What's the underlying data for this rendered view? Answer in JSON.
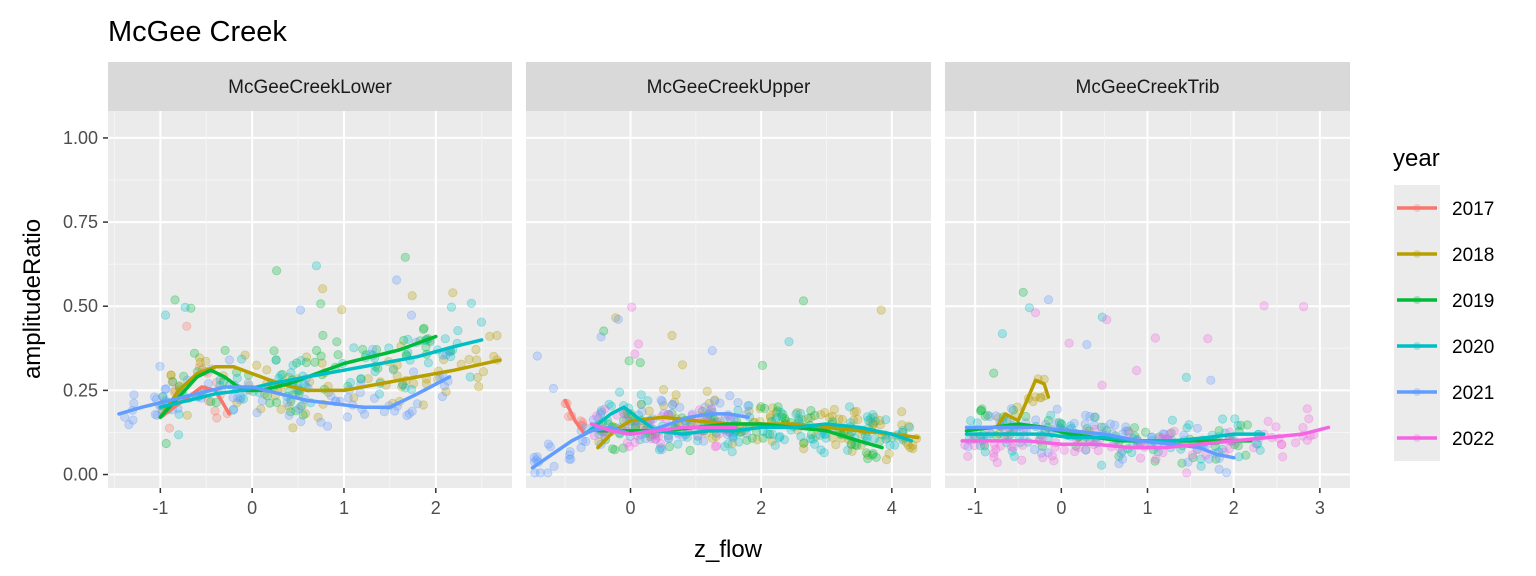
{
  "chart_data": {
    "type": "scatter",
    "title": "McGee Creek",
    "xlabel": "z_flow",
    "ylabel": "amplitudeRatio",
    "ylim": [
      -0.04,
      1.08
    ],
    "yticks": [
      "0.00",
      "0.25",
      "0.50",
      "0.75",
      "1.00"
    ],
    "grid": true,
    "smoothing": "loess",
    "legend": {
      "title": "year",
      "placement": "right",
      "entries": [
        "2017",
        "2018",
        "2019",
        "2020",
        "2021",
        "2022"
      ]
    },
    "colors": {
      "2017": "#F8766D",
      "2018": "#B79F00",
      "2019": "#00BA38",
      "2020": "#00BFC4",
      "2021": "#619CFF",
      "2022": "#F564E3"
    },
    "panels": [
      {
        "label": "McGeeCreekLower",
        "xlim": [
          -1.57,
          2.83
        ],
        "xticks": [
          "-1",
          "0",
          "1",
          "2"
        ],
        "series": [
          {
            "name": "2017",
            "x": [
              -1.0,
              -0.85,
              -0.7,
              -0.55,
              -0.4,
              -0.25
            ],
            "y": [
              0.17,
              0.2,
              0.23,
              0.26,
              0.25,
              0.18
            ]
          },
          {
            "name": "2018",
            "x": [
              -1.0,
              -0.8,
              -0.6,
              -0.4,
              -0.2,
              0.0,
              0.3,
              0.6,
              1.0,
              1.4,
              1.8,
              2.2,
              2.7
            ],
            "y": [
              0.17,
              0.25,
              0.3,
              0.32,
              0.32,
              0.3,
              0.27,
              0.25,
              0.25,
              0.27,
              0.29,
              0.31,
              0.34
            ]
          },
          {
            "name": "2019",
            "x": [
              -1.0,
              -0.8,
              -0.6,
              -0.45,
              -0.3,
              -0.1,
              0.1,
              0.4,
              0.7,
              1.0,
              1.3,
              1.6,
              2.0
            ],
            "y": [
              0.17,
              0.23,
              0.29,
              0.31,
              0.29,
              0.25,
              0.25,
              0.27,
              0.3,
              0.33,
              0.35,
              0.37,
              0.41
            ]
          },
          {
            "name": "2020",
            "x": [
              -1.0,
              -0.7,
              -0.4,
              -0.1,
              0.2,
              0.6,
              1.0,
              1.4,
              1.8,
              2.2,
              2.5
            ],
            "y": [
              0.2,
              0.22,
              0.24,
              0.25,
              0.27,
              0.29,
              0.31,
              0.33,
              0.35,
              0.38,
              0.4
            ]
          },
          {
            "name": "2021",
            "x": [
              -1.45,
              -1.2,
              -0.9,
              -0.6,
              -0.3,
              0.0,
              0.3,
              0.6,
              0.9,
              1.2,
              1.5,
              1.8,
              2.15
            ],
            "y": [
              0.18,
              0.2,
              0.22,
              0.24,
              0.26,
              0.26,
              0.24,
              0.22,
              0.21,
              0.2,
              0.2,
              0.24,
              0.29
            ]
          }
        ]
      },
      {
        "label": "McGeeCreekUpper",
        "xlim": [
          -1.6,
          4.6
        ],
        "xticks": [
          "0",
          "2",
          "4"
        ],
        "series": [
          {
            "name": "2017",
            "x": [
              -1.0,
              -0.85,
              -0.7
            ],
            "y": [
              0.22,
              0.16,
              0.12
            ]
          },
          {
            "name": "2018",
            "x": [
              -0.5,
              -0.25,
              0.0,
              0.5,
              1.0,
              1.5,
              2.0,
              2.5,
              3.0,
              3.5,
              4.0,
              4.4
            ],
            "y": [
              0.08,
              0.13,
              0.16,
              0.17,
              0.16,
              0.15,
              0.15,
              0.15,
              0.14,
              0.13,
              0.12,
              0.11
            ]
          },
          {
            "name": "2019",
            "x": [
              -0.5,
              -0.2,
              0.0,
              0.5,
              1.0,
              1.5,
              2.0,
              2.5,
              3.0,
              3.5,
              3.85
            ],
            "y": [
              0.13,
              0.13,
              0.13,
              0.13,
              0.14,
              0.15,
              0.15,
              0.14,
              0.13,
              0.1,
              0.08
            ]
          },
          {
            "name": "2020",
            "x": [
              -0.7,
              -0.5,
              -0.3,
              -0.1,
              0.1,
              0.4,
              0.8,
              1.2,
              1.6,
              2.0,
              2.5,
              3.0,
              3.5,
              4.0,
              4.3
            ],
            "y": [
              0.12,
              0.15,
              0.18,
              0.2,
              0.17,
              0.13,
              0.12,
              0.13,
              0.13,
              0.14,
              0.14,
              0.15,
              0.14,
              0.12,
              0.1
            ]
          },
          {
            "name": "2021",
            "x": [
              -1.5,
              -1.2,
              -0.9,
              -0.6,
              -0.3,
              0.0,
              0.3,
              0.6,
              0.9,
              1.2,
              1.5,
              1.8
            ],
            "y": [
              0.02,
              0.06,
              0.1,
              0.13,
              0.14,
              0.12,
              0.13,
              0.15,
              0.17,
              0.18,
              0.18,
              0.17
            ]
          },
          {
            "name": "2022",
            "x": [
              -0.6,
              -0.3,
              0.0,
              0.4,
              0.8,
              1.2,
              1.6
            ],
            "y": [
              0.15,
              0.13,
              0.12,
              0.13,
              0.14,
              0.14,
              0.14
            ]
          }
        ]
      },
      {
        "label": "McGeeCreekTrib",
        "xlim": [
          -1.35,
          3.35
        ],
        "xticks": [
          "-1",
          "0",
          "1",
          "2",
          "3"
        ],
        "series": [
          {
            "name": "2018",
            "x": [
              -0.75,
              -0.65,
              -0.5,
              -0.4,
              -0.3,
              -0.2,
              -0.15
            ],
            "y": [
              0.14,
              0.18,
              0.16,
              0.22,
              0.28,
              0.27,
              0.23
            ]
          },
          {
            "name": "2019",
            "x": [
              -1.1,
              -0.8,
              -0.5,
              -0.2,
              0.1,
              0.4,
              0.7,
              1.0,
              1.3,
              1.6,
              1.9,
              2.2
            ],
            "y": [
              0.13,
              0.14,
              0.15,
              0.14,
              0.12,
              0.11,
              0.1,
              0.1,
              0.1,
              0.1,
              0.1,
              0.1
            ]
          },
          {
            "name": "2020",
            "x": [
              -1.1,
              -0.8,
              -0.5,
              -0.2,
              0.1,
              0.5,
              0.9,
              1.3,
              1.7,
              2.0,
              2.35
            ],
            "y": [
              0.12,
              0.12,
              0.12,
              0.12,
              0.11,
              0.11,
              0.1,
              0.1,
              0.11,
              0.12,
              0.12
            ]
          },
          {
            "name": "2021",
            "x": [
              -1.1,
              -0.7,
              -0.3,
              0.1,
              0.5,
              0.9,
              1.3,
              1.6,
              1.8,
              2.0
            ],
            "y": [
              0.14,
              0.14,
              0.14,
              0.13,
              0.12,
              0.1,
              0.09,
              0.08,
              0.06,
              0.05
            ]
          },
          {
            "name": "2022",
            "x": [
              -1.15,
              -0.8,
              -0.4,
              0.0,
              0.4,
              0.8,
              1.2,
              1.6,
              2.0,
              2.4,
              2.8,
              3.1
            ],
            "y": [
              0.1,
              0.1,
              0.1,
              0.09,
              0.09,
              0.08,
              0.08,
              0.09,
              0.1,
              0.11,
              0.12,
              0.14
            ]
          }
        ]
      }
    ]
  }
}
